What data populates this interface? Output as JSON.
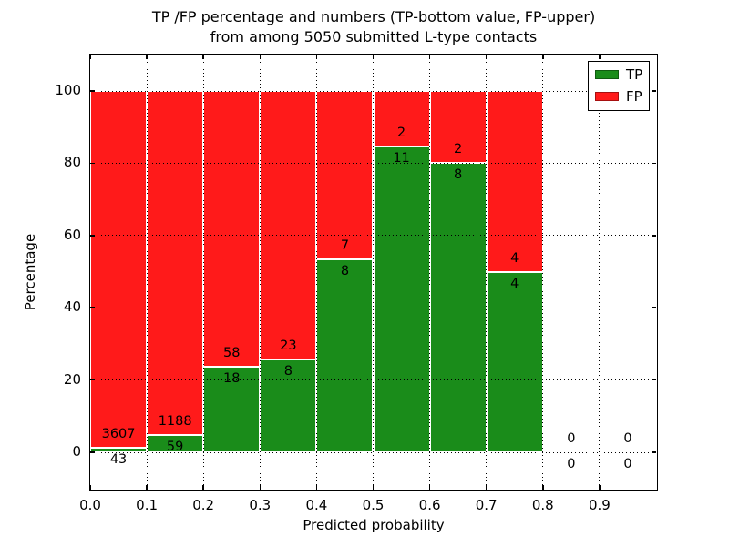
{
  "title": {
    "line1": "TP /FP percentage and numbers (TP-bottom value, FP-upper)",
    "line2": "from among 5050 submitted L-type contacts"
  },
  "axes": {
    "xlabel": "Predicted probability",
    "ylabel": "Percentage"
  },
  "legend": {
    "items": [
      {
        "label": "TP",
        "color": "#1a8c1a"
      },
      {
        "label": "FP",
        "color": "#ff1a1a"
      }
    ]
  },
  "colors": {
    "tp_green": "#1a8c1a",
    "fp_red": "#ff1a1a",
    "grid": "#000000",
    "bar_edge": "#ffffff"
  },
  "chart_data": {
    "type": "bar",
    "stacked": true,
    "title": "TP /FP percentage and numbers (TP-bottom value, FP-upper) from among 5050 submitted L-type contacts",
    "xlabel": "Predicted probability",
    "ylabel": "Percentage",
    "xlim": [
      0.0,
      1.0
    ],
    "ylim": [
      -10,
      110
    ],
    "grid": "dotted",
    "legend_position": "upper right",
    "bin_width": 0.1,
    "x_ticks": [
      "0.0",
      "0.1",
      "0.2",
      "0.3",
      "0.4",
      "0.5",
      "0.6",
      "0.7",
      "0.8",
      "0.9"
    ],
    "y_ticks": [
      0,
      20,
      40,
      60,
      80,
      100
    ],
    "series_names": [
      "TP",
      "FP"
    ],
    "total_submitted": 5050,
    "bins": [
      {
        "range": "0.0-0.1",
        "center": 0.05,
        "tp_count": 43,
        "fp_count": 3607,
        "tp_pct": 1.18,
        "fp_pct": 98.82
      },
      {
        "range": "0.1-0.2",
        "center": 0.15,
        "tp_count": 59,
        "fp_count": 1188,
        "tp_pct": 4.73,
        "fp_pct": 95.27
      },
      {
        "range": "0.2-0.3",
        "center": 0.25,
        "tp_count": 18,
        "fp_count": 58,
        "tp_pct": 23.68,
        "fp_pct": 76.32
      },
      {
        "range": "0.3-0.4",
        "center": 0.35,
        "tp_count": 8,
        "fp_count": 23,
        "tp_pct": 25.81,
        "fp_pct": 74.19
      },
      {
        "range": "0.4-0.5",
        "center": 0.45,
        "tp_count": 8,
        "fp_count": 7,
        "tp_pct": 53.33,
        "fp_pct": 46.67
      },
      {
        "range": "0.5-0.6",
        "center": 0.55,
        "tp_count": 11,
        "fp_count": 2,
        "tp_pct": 84.62,
        "fp_pct": 15.38
      },
      {
        "range": "0.6-0.7",
        "center": 0.65,
        "tp_count": 8,
        "fp_count": 2,
        "tp_pct": 80.0,
        "fp_pct": 20.0
      },
      {
        "range": "0.7-0.8",
        "center": 0.75,
        "tp_count": 4,
        "fp_count": 4,
        "tp_pct": 50.0,
        "fp_pct": 50.0
      },
      {
        "range": "0.8-0.9",
        "center": 0.85,
        "tp_count": 0,
        "fp_count": 0,
        "tp_pct": 0,
        "fp_pct": 0
      },
      {
        "range": "0.9-1.0",
        "center": 0.95,
        "tp_count": 0,
        "fp_count": 0,
        "tp_pct": 0,
        "fp_pct": 0
      }
    ]
  }
}
